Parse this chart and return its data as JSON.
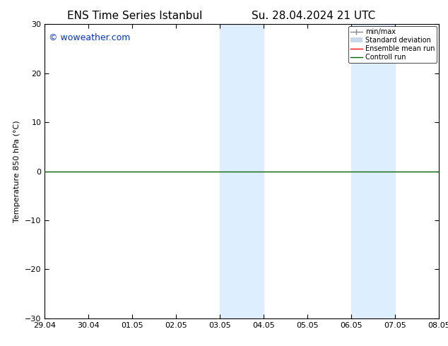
{
  "title_left": "ENS Time Series Istanbul",
  "title_right": "Su. 28.04.2024 21 UTC",
  "ylabel": "Temperature 850 hPa (°C)",
  "ylim": [
    -30,
    30
  ],
  "yticks": [
    -30,
    -20,
    -10,
    0,
    10,
    20,
    30
  ],
  "xlim_start": 0,
  "xlim_end": 9,
  "xtick_labels": [
    "29.04",
    "30.04",
    "01.05",
    "02.05",
    "03.05",
    "04.05",
    "05.05",
    "06.05",
    "07.05",
    "08.05"
  ],
  "xtick_positions": [
    0,
    1,
    2,
    3,
    4,
    5,
    6,
    7,
    8,
    9
  ],
  "shade_bands": [
    {
      "x_start": 4.0,
      "x_end": 4.5
    },
    {
      "x_start": 4.5,
      "x_end": 5.0
    },
    {
      "x_start": 7.0,
      "x_end": 7.5
    },
    {
      "x_start": 7.5,
      "x_end": 8.0
    }
  ],
  "shade_color": "#ddeeff",
  "control_run_y": 0,
  "control_run_color": "#006400",
  "ensemble_mean_color": "#ff0000",
  "minmax_color": "#888888",
  "std_dev_color": "#c8d8e8",
  "watermark_text": "© woweather.com",
  "watermark_color": "#0033cc",
  "watermark_fontsize": 9,
  "legend_labels": [
    "min/max",
    "Standard deviation",
    "Ensemble mean run",
    "Controll run"
  ],
  "legend_colors": [
    "#888888",
    "#c8d8e8",
    "#ff0000",
    "#006400"
  ],
  "title_fontsize": 11,
  "axis_fontsize": 8,
  "tick_fontsize": 8,
  "background_color": "#ffffff",
  "control_run_linewidth": 1.0
}
